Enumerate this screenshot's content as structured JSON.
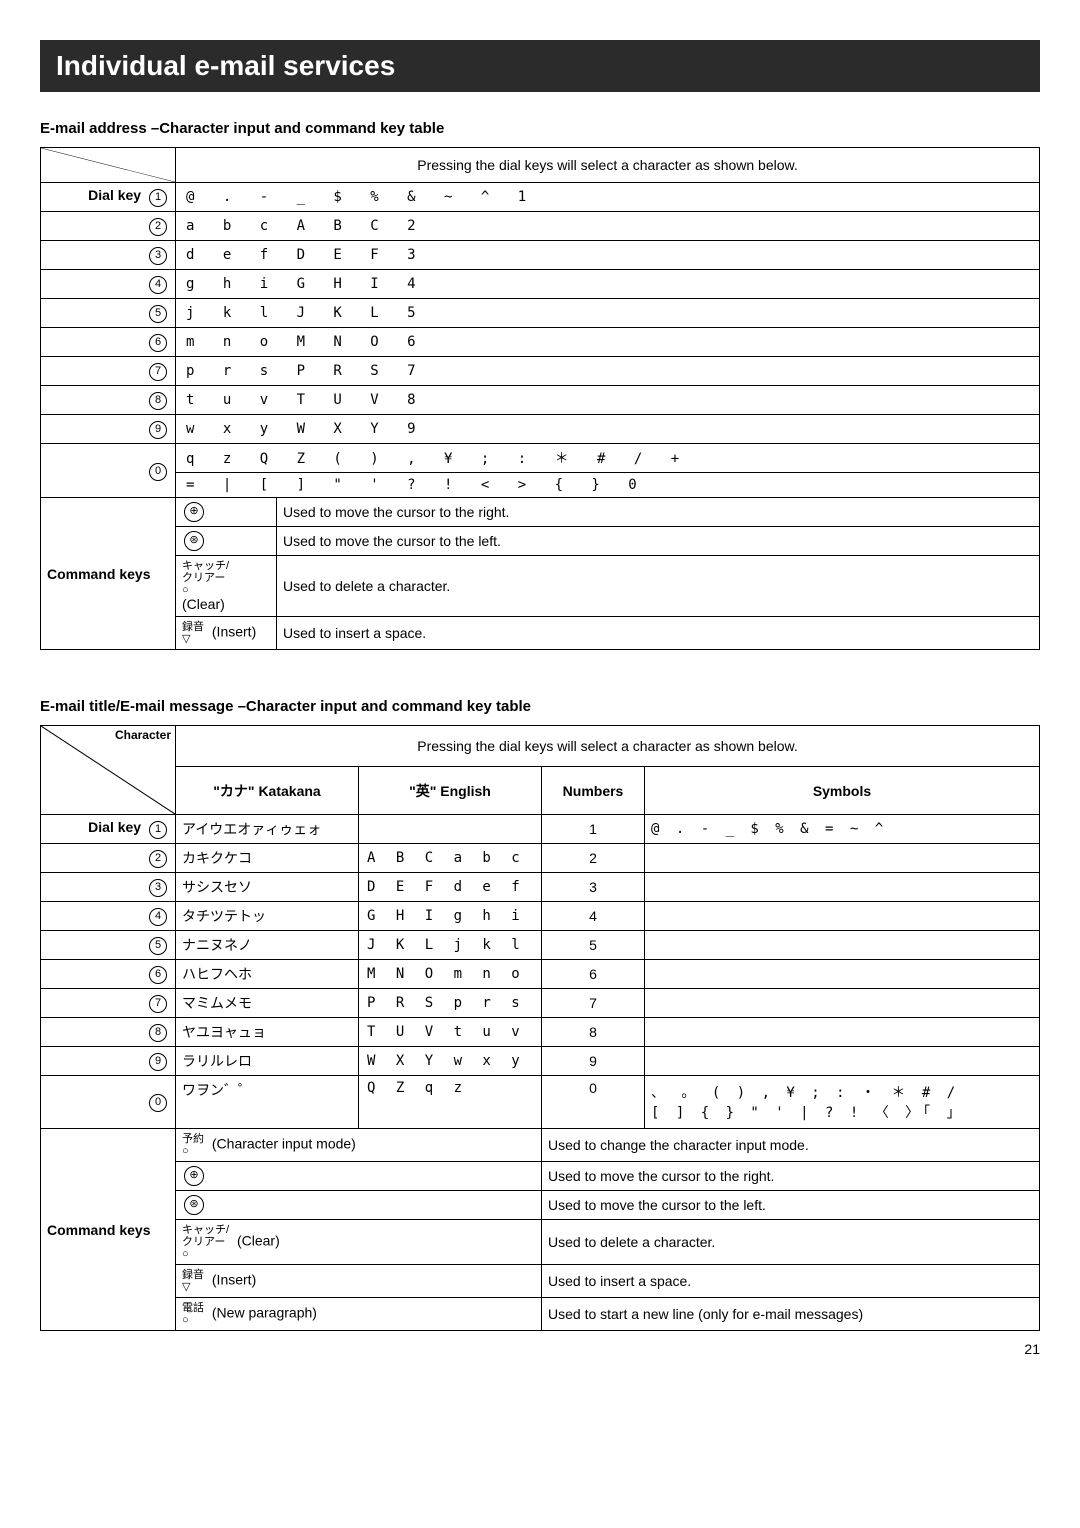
{
  "banner": "Individual e-mail services",
  "page_number": "21",
  "table1": {
    "title": "E-mail address –Character input and command key table",
    "header_note": "Pressing the dial keys will select a character as shown below.",
    "dialkey_label": "Dial key",
    "rows": [
      {
        "key": "1",
        "chars": "@ . - _ $ % & ~ ^ 1"
      },
      {
        "key": "2",
        "chars": "a b c A B C 2"
      },
      {
        "key": "3",
        "chars": "d e f D E F 3"
      },
      {
        "key": "4",
        "chars": "g h i G H I 4"
      },
      {
        "key": "5",
        "chars": "j k l J K L 5"
      },
      {
        "key": "6",
        "chars": "m n o M N O 6"
      },
      {
        "key": "7",
        "chars": "p r s P R S 7"
      },
      {
        "key": "8",
        "chars": "t u v T U V 8"
      },
      {
        "key": "9",
        "chars": "w x y W X Y 9"
      }
    ],
    "row0": {
      "key": "0",
      "line1": "q z Q Z ( ) , ¥ ; : ＊ # / +",
      "line2": "= | [ ] \" ' ? ! < > { } 0"
    },
    "command_label": "Command keys",
    "commands": [
      {
        "sym": "⊕",
        "label": "",
        "desc": "Used to move the cursor to the right."
      },
      {
        "sym": "⊛",
        "label": "",
        "desc": "Used to move the cursor to the left."
      },
      {
        "sym": "",
        "label": "(Clear)",
        "desc": "Used to delete a character."
      },
      {
        "sym": "",
        "label": "(Insert)",
        "desc": "Used to insert a space."
      }
    ]
  },
  "table2": {
    "title": "E-mail title/E-mail message –Character input and command key table",
    "header_note": "Pressing the dial keys will select a character as shown below.",
    "diag_top": "Character",
    "dialkey_label": "Dial key",
    "col_headers": {
      "katakana": "\"カナ\" Katakana",
      "english": "\"英\" English",
      "numbers": "Numbers",
      "symbols": "Symbols"
    },
    "rows": [
      {
        "key": "1",
        "kana": "アイウエオァィゥェォ",
        "eng": "",
        "num": "1",
        "sym": "@ . - _ $ % & = ~ ^"
      },
      {
        "key": "2",
        "kana": "カキクケコ",
        "eng": "A B C a b c",
        "num": "2",
        "sym": ""
      },
      {
        "key": "3",
        "kana": "サシスセソ",
        "eng": "D E F d e f",
        "num": "3",
        "sym": ""
      },
      {
        "key": "4",
        "kana": "タチツテトッ",
        "eng": "G H I g h i",
        "num": "4",
        "sym": ""
      },
      {
        "key": "5",
        "kana": "ナニヌネノ",
        "eng": "J K L j k l",
        "num": "5",
        "sym": ""
      },
      {
        "key": "6",
        "kana": "ハヒフヘホ",
        "eng": "M N O m n o",
        "num": "6",
        "sym": ""
      },
      {
        "key": "7",
        "kana": "マミムメモ",
        "eng": "P R S p r s",
        "num": "7",
        "sym": ""
      },
      {
        "key": "8",
        "kana": "ヤユヨャュョ",
        "eng": "T U V t u v",
        "num": "8",
        "sym": ""
      },
      {
        "key": "9",
        "kana": "ラリルレロ",
        "eng": "W X Y w x y",
        "num": "9",
        "sym": ""
      }
    ],
    "row0": {
      "key": "0",
      "kana": "ワヲン゛゜",
      "eng": "Q Z q z",
      "num": "0",
      "sym1": "、 。 ( ) , ¥  ; : ・ ＊ # /",
      "sym2": "[  ] {  } \"  '  | ? ! 〈 〉「  」"
    },
    "command_label": "Command keys",
    "commands": [
      {
        "label": "(Character input mode)",
        "desc": "Used to change the character input mode."
      },
      {
        "label_sym": "⊕",
        "label": "",
        "desc": "Used to move the cursor to the right."
      },
      {
        "label_sym": "⊛",
        "label": "",
        "desc": "Used to move the cursor to the left."
      },
      {
        "label": "(Clear)",
        "desc": "Used to delete a character."
      },
      {
        "label": "(Insert)",
        "desc": "Used to insert a space."
      },
      {
        "label": "(New paragraph)",
        "desc": "Used to start a new line (only for e-mail messages)"
      }
    ]
  }
}
